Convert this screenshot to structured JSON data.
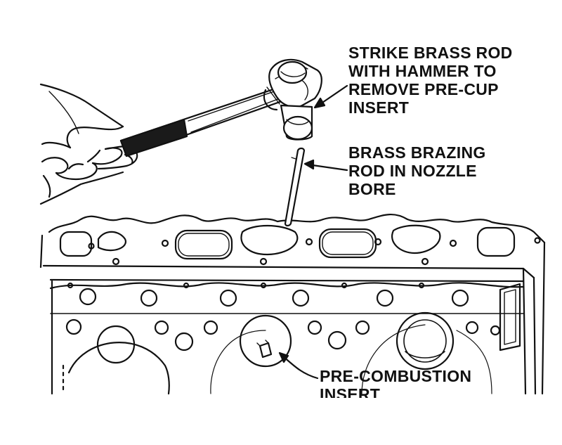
{
  "labels": {
    "strike": [
      "STRIKE BRASS ROD",
      "WITH HAMMER TO",
      "REMOVE PRE-CUP",
      "INSERT"
    ],
    "rod": [
      "BRASS BRAZING",
      "ROD IN NOZZLE",
      "BORE"
    ],
    "insert": [
      "PRE-COMBUSTION",
      "INSERT"
    ]
  },
  "colors": {
    "ink": "#111111",
    "paper": "#ffffff"
  },
  "icons": [
    "hand",
    "ball-peen-hammer",
    "brass-rod",
    "cylinder-head",
    "pre-combustion-insert"
  ]
}
